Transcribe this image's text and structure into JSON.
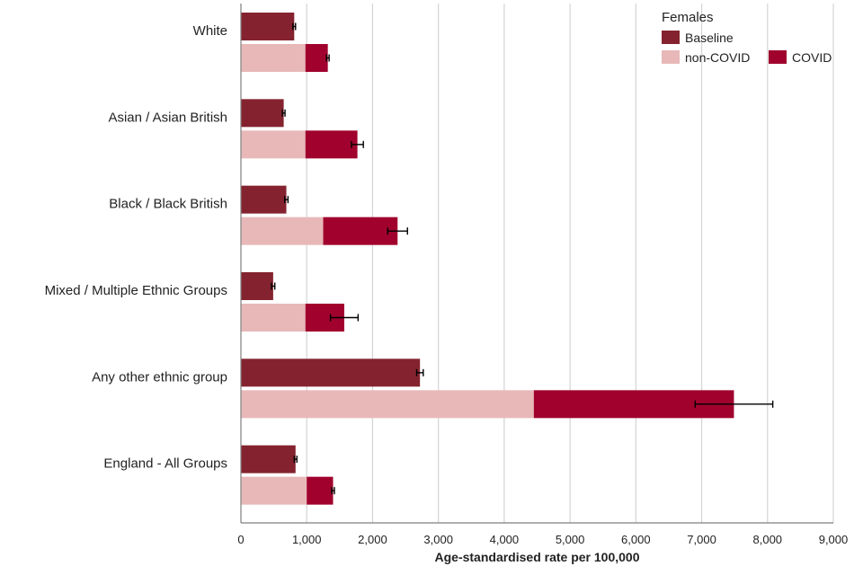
{
  "chart_data": {
    "type": "bar",
    "orientation": "horizontal",
    "stacked_series": [
      "non-COVID",
      "COVID"
    ],
    "categories": [
      "White",
      "Asian / Asian British",
      "Black / Black British",
      "Mixed / Multiple Ethnic Groups",
      "Any other ethnic group",
      "England - All Groups"
    ],
    "series": [
      {
        "name": "Baseline",
        "color": "#84232f",
        "values": [
          810,
          650,
          690,
          490,
          2720,
          830
        ],
        "error": [
          20,
          20,
          25,
          25,
          50,
          20
        ]
      },
      {
        "name": "non-COVID",
        "color": "#e8b8b8",
        "values": [
          980,
          980,
          1250,
          980,
          4450,
          1000
        ]
      },
      {
        "name": "COVID",
        "color": "#a0022d",
        "values": [
          340,
          790,
          1130,
          590,
          3040,
          400
        ],
        "error": [
          20,
          90,
          150,
          210,
          590,
          20
        ]
      }
    ],
    "legend": {
      "title": "Females",
      "position": "top-right"
    },
    "xlabel": "Age-standardised rate per 100,000",
    "ylabel": "",
    "xlim": [
      0,
      9000
    ],
    "xticks": [
      0,
      1000,
      2000,
      3000,
      4000,
      5000,
      6000,
      7000,
      8000,
      9000
    ],
    "xtick_labels": [
      "0",
      "1,000",
      "2,000",
      "3,000",
      "4,000",
      "5,000",
      "6,000",
      "7,000",
      "8,000",
      "9,000"
    ],
    "grid": "vertical"
  }
}
